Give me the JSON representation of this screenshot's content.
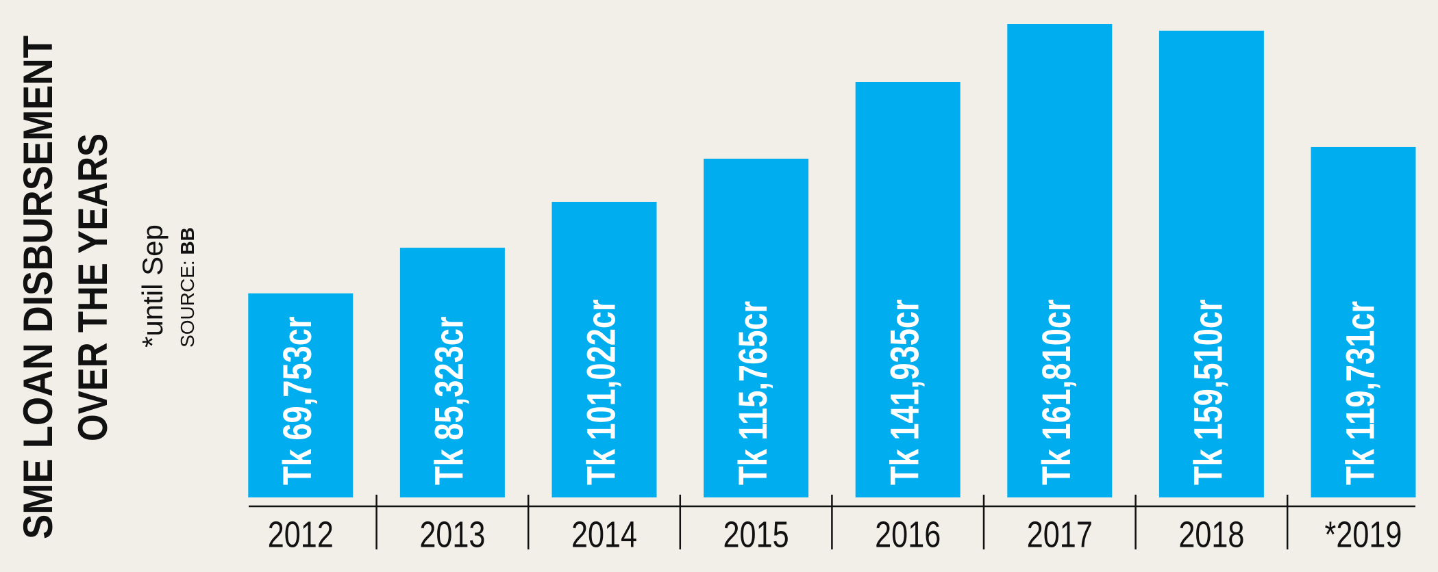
{
  "chart_data": {
    "type": "bar",
    "title": [
      "SME LOAN DISBURSEMENT",
      "OVER THE YEARS"
    ],
    "note": "*until Sep",
    "source_label": "SOURCE:",
    "source": "BB",
    "categories": [
      "2012",
      "2013",
      "2014",
      "2015",
      "2016",
      "2017",
      "2018",
      "*2019"
    ],
    "values": [
      69753,
      85323,
      101022,
      115765,
      141935,
      161810,
      159510,
      119731
    ],
    "value_labels": [
      "Tk 69,753cr",
      "Tk 85,323cr",
      "Tk 101,022cr",
      "Tk 115,765cr",
      "Tk 141,935cr",
      "Tk 161,810cr",
      "Tk 159,510cr",
      "Tk 119,731cr"
    ],
    "color": "#00aeef"
  }
}
